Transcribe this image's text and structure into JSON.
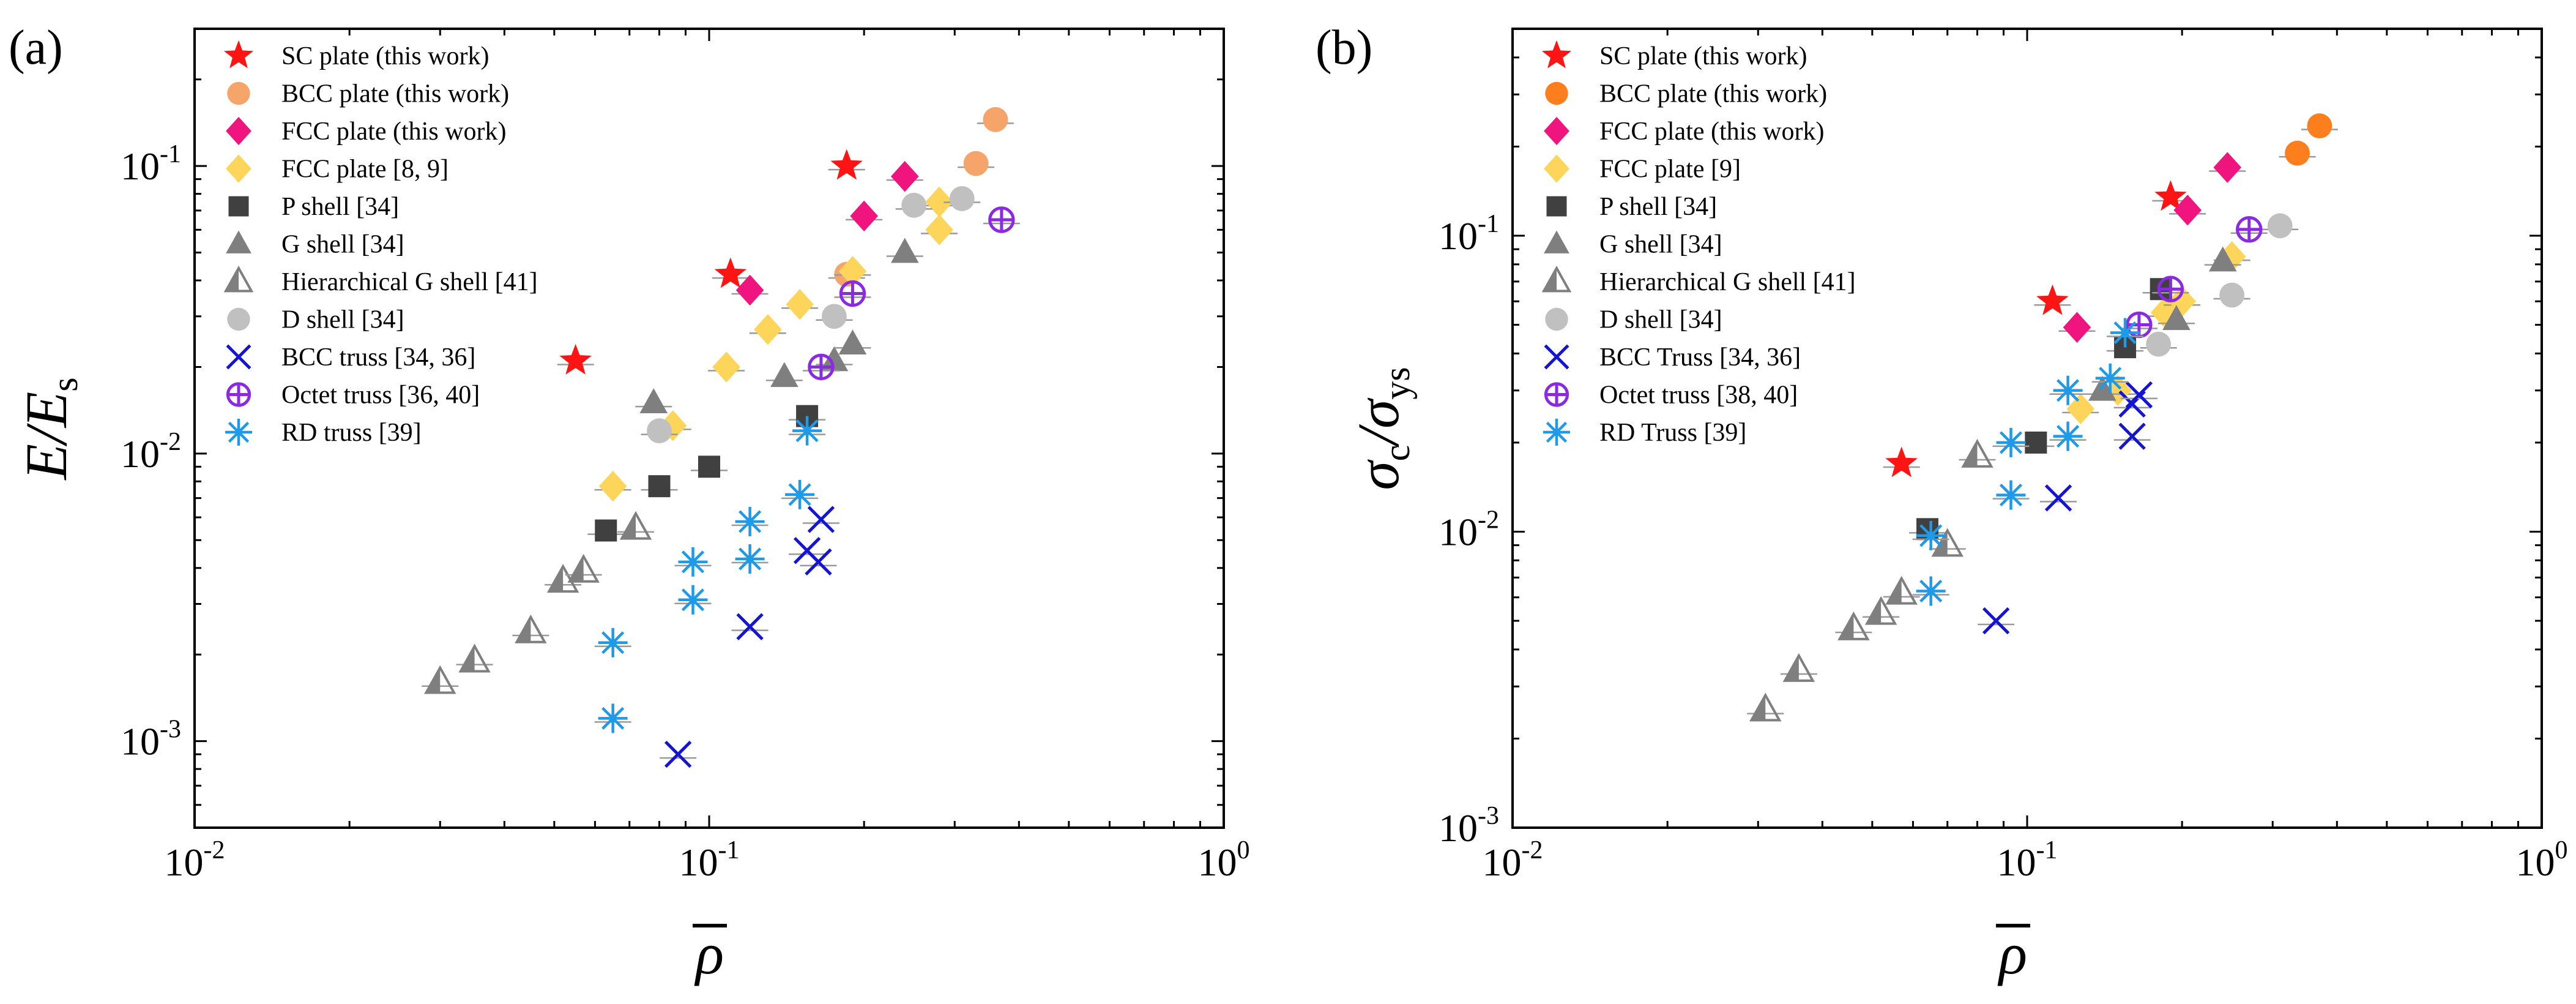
{
  "chart_data": [
    {
      "panel_label": "(a)",
      "type": "scatter",
      "xscale": "log",
      "yscale": "log",
      "xlim": [
        0.01,
        1
      ],
      "ylim": [
        0.0005,
        0.3
      ],
      "xticks": [
        {
          "base": "10",
          "exp": "-2"
        },
        {
          "base": "10",
          "exp": "-1"
        },
        {
          "base": "10",
          "exp": "0"
        }
      ],
      "yticks": [
        {
          "base": "10",
          "exp": "-3"
        },
        {
          "base": "10",
          "exp": "-2"
        },
        {
          "base": "10",
          "exp": "-1"
        }
      ],
      "xlabel": "ρ",
      "ylabel": {
        "main": "E/E",
        "sub": "s"
      },
      "legend_position": "top-left",
      "series": [
        {
          "name": "SC plate (this work)",
          "marker": "star",
          "color": "#ff1414",
          "points": [
            [
              0.055,
              0.021
            ],
            [
              0.11,
              0.042
            ],
            [
              0.185,
              0.1
            ]
          ]
        },
        {
          "name": "BCC plate (this work)",
          "marker": "circle",
          "color": "#f5a46a",
          "points": [
            [
              0.185,
              0.042
            ],
            [
              0.33,
              0.102
            ],
            [
              0.36,
              0.145
            ]
          ]
        },
        {
          "name": "FCC plate (this work)",
          "marker": "diamond",
          "color": "#f0147f",
          "points": [
            [
              0.12,
              0.037
            ],
            [
              0.2,
              0.067
            ],
            [
              0.24,
              0.092
            ]
          ]
        },
        {
          "name": "FCC plate [8, 9]",
          "marker": "diamond",
          "color": "#fcd55a",
          "points": [
            [
              0.065,
              0.0077
            ],
            [
              0.085,
              0.0125
            ],
            [
              0.108,
              0.02
            ],
            [
              0.13,
              0.027
            ],
            [
              0.15,
              0.033
            ],
            [
              0.19,
              0.043
            ],
            [
              0.28,
              0.06
            ],
            [
              0.28,
              0.075
            ]
          ]
        },
        {
          "name": "P shell [34]",
          "marker": "square",
          "color": "#404040",
          "points": [
            [
              0.063,
              0.0054
            ],
            [
              0.08,
              0.0077
            ],
            [
              0.1,
              0.009
            ],
            [
              0.155,
              0.0135
            ]
          ]
        },
        {
          "name": "G shell [34]",
          "marker": "triangle",
          "color": "#7f7f7f",
          "points": [
            [
              0.078,
              0.015
            ],
            [
              0.14,
              0.0185
            ],
            [
              0.175,
              0.021
            ],
            [
              0.19,
              0.024
            ],
            [
              0.24,
              0.05
            ]
          ]
        },
        {
          "name": "Hierarchical G shell [41]",
          "marker": "half-triangle",
          "color": "#7f7f7f",
          "points": [
            [
              0.03,
              0.0016
            ],
            [
              0.035,
              0.0019
            ],
            [
              0.045,
              0.0024
            ],
            [
              0.052,
              0.0036
            ],
            [
              0.057,
              0.0039
            ],
            [
              0.072,
              0.0055
            ]
          ]
        },
        {
          "name": "D shell [34]",
          "marker": "circle",
          "color": "#c0c0c0",
          "points": [
            [
              0.08,
              0.012
            ],
            [
              0.175,
              0.03
            ],
            [
              0.25,
              0.073
            ],
            [
              0.31,
              0.077
            ]
          ]
        },
        {
          "name": "BCC truss [34, 36]",
          "marker": "x",
          "color": "#1414d4",
          "points": [
            [
              0.087,
              0.0009
            ],
            [
              0.12,
              0.0025
            ],
            [
              0.155,
              0.0046
            ],
            [
              0.163,
              0.0042
            ],
            [
              0.165,
              0.0059
            ]
          ]
        },
        {
          "name": "Octet truss [36, 40]",
          "marker": "circle-plus",
          "color": "#8a2be2",
          "points": [
            [
              0.165,
              0.02
            ],
            [
              0.19,
              0.036
            ],
            [
              0.37,
              0.065
            ]
          ]
        },
        {
          "name": "RD truss [39]",
          "marker": "asterisk",
          "color": "#1e9ae8",
          "points": [
            [
              0.065,
              0.0012
            ],
            [
              0.065,
              0.0022
            ],
            [
              0.093,
              0.0031
            ],
            [
              0.093,
              0.0042
            ],
            [
              0.12,
              0.0043
            ],
            [
              0.12,
              0.0058
            ],
            [
              0.15,
              0.0072
            ],
            [
              0.155,
              0.012
            ]
          ]
        }
      ]
    },
    {
      "panel_label": "(b)",
      "type": "scatter",
      "xscale": "log",
      "yscale": "log",
      "xlim": [
        0.01,
        1
      ],
      "ylim": [
        0.001,
        0.5
      ],
      "xticks": [
        {
          "base": "10",
          "exp": "-2"
        },
        {
          "base": "10",
          "exp": "-1"
        },
        {
          "base": "10",
          "exp": "0"
        }
      ],
      "yticks": [
        {
          "base": "10",
          "exp": "-3"
        },
        {
          "base": "10",
          "exp": "-2"
        },
        {
          "base": "10",
          "exp": "-1"
        }
      ],
      "xlabel": "ρ",
      "ylabel": {
        "main1": "σ",
        "sub1": "c",
        "sep": "/",
        "main2": "σ",
        "sub2": "ys"
      },
      "legend_position": "top-left",
      "series": [
        {
          "name": "SC plate (this work)",
          "marker": "star",
          "color": "#ff1414",
          "points": [
            [
              0.057,
              0.017
            ],
            [
              0.112,
              0.06
            ],
            [
              0.19,
              0.135
            ]
          ]
        },
        {
          "name": "BCC plate (this work)",
          "marker": "circle",
          "color": "#fc7e1c",
          "points": [
            [
              0.335,
              0.19
            ],
            [
              0.37,
              0.235
            ]
          ]
        },
        {
          "name": "FCC plate (this work)",
          "marker": "diamond",
          "color": "#f0147f",
          "points": [
            [
              0.125,
              0.049
            ],
            [
              0.205,
              0.122
            ],
            [
              0.245,
              0.17
            ]
          ]
        },
        {
          "name": "FCC plate [9]",
          "marker": "diamond",
          "color": "#fcd55a",
          "points": [
            [
              0.127,
              0.026
            ],
            [
              0.15,
              0.03
            ],
            [
              0.185,
              0.055
            ],
            [
              0.2,
              0.06
            ],
            [
              0.25,
              0.085
            ]
          ]
        },
        {
          "name": "P shell [34]",
          "marker": "square",
          "color": "#404040",
          "points": [
            [
              0.064,
              0.0102
            ],
            [
              0.104,
              0.02
            ],
            [
              0.155,
              0.042
            ],
            [
              0.182,
              0.066
            ]
          ]
        },
        {
          "name": "G shell [34]",
          "marker": "triangle",
          "color": "#7f7f7f",
          "points": [
            [
              0.14,
              0.03
            ],
            [
              0.195,
              0.052
            ],
            [
              0.24,
              0.082
            ]
          ]
        },
        {
          "name": "Hierarchical G shell [41]",
          "marker": "half-triangle",
          "color": "#7f7f7f",
          "points": [
            [
              0.031,
              0.0025
            ],
            [
              0.036,
              0.0034
            ],
            [
              0.046,
              0.0047
            ],
            [
              0.052,
              0.0053
            ],
            [
              0.057,
              0.0062
            ],
            [
              0.07,
              0.009
            ],
            [
              0.08,
              0.018
            ]
          ]
        },
        {
          "name": "D shell [34]",
          "marker": "circle",
          "color": "#c0c0c0",
          "points": [
            [
              0.18,
              0.043
            ],
            [
              0.25,
              0.063
            ],
            [
              0.31,
              0.108
            ]
          ]
        },
        {
          "name": "BCC Truss [34, 36]",
          "marker": "x",
          "color": "#1414d4",
          "points": [
            [
              0.087,
              0.005
            ],
            [
              0.115,
              0.013
            ],
            [
              0.16,
              0.021
            ],
            [
              0.16,
              0.027
            ],
            [
              0.165,
              0.029
            ]
          ]
        },
        {
          "name": "Octet truss [38, 40]",
          "marker": "circle-plus",
          "color": "#8a2be2",
          "points": [
            [
              0.165,
              0.05
            ],
            [
              0.19,
              0.066
            ],
            [
              0.27,
              0.105
            ]
          ]
        },
        {
          "name": "RD Truss [39]",
          "marker": "asterisk",
          "color": "#1e9ae8",
          "points": [
            [
              0.065,
              0.0063
            ],
            [
              0.065,
              0.0097
            ],
            [
              0.093,
              0.0133
            ],
            [
              0.093,
              0.02
            ],
            [
              0.12,
              0.021
            ],
            [
              0.12,
              0.03
            ],
            [
              0.145,
              0.033
            ],
            [
              0.155,
              0.047
            ]
          ]
        }
      ]
    }
  ]
}
